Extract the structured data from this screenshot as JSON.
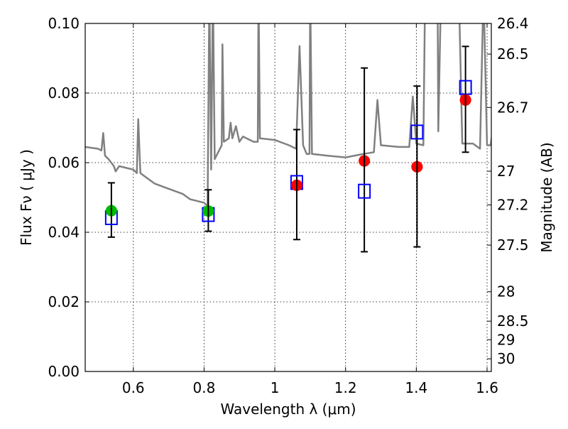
{
  "chart_data": {
    "type": "scatter",
    "title": "",
    "xlabel": "Wavelength  λ (μm)",
    "ylabel": "Flux  Fν  ( μJy )",
    "ylabel_right": "Magnitude (AB)",
    "xlim": [
      0.464,
      1.612
    ],
    "ylim": [
      0.0,
      0.1
    ],
    "grid": true,
    "x_ticks": [
      0.6,
      0.8,
      1.0,
      1.2,
      1.4,
      1.6
    ],
    "x_tick_labels": [
      "0.6",
      "0.8",
      "1",
      "1.2",
      "1.4",
      "1.6"
    ],
    "y_ticks": [
      0.0,
      0.02,
      0.04,
      0.06,
      0.08,
      0.1
    ],
    "y_tick_labels": [
      "0.00",
      "0.02",
      "0.04",
      "0.06",
      "0.08",
      "0.10"
    ],
    "right_ticks_mag": [
      26.4,
      26.5,
      26.7,
      27,
      27.2,
      27.5,
      28,
      28.5,
      29,
      30
    ],
    "right_tick_labels": [
      "26.4",
      "26.5",
      "26.7",
      "27",
      "27.2",
      "27.5",
      "28",
      "28.5",
      "29",
      "30"
    ],
    "mag_zeropoint": 23.9,
    "colors": {
      "spectrum": "#808080",
      "green": "#00bb00",
      "red": "#ff0000",
      "model": "#0000ff",
      "errorbar": "#000000"
    },
    "series": [
      {
        "name": "spectrum",
        "kind": "line",
        "x": [
          0.464,
          0.5,
          0.51,
          0.515,
          0.52,
          0.53,
          0.545,
          0.55,
          0.56,
          0.58,
          0.6,
          0.61,
          0.614,
          0.62,
          0.64,
          0.66,
          0.7,
          0.74,
          0.76,
          0.8,
          0.81,
          0.815,
          0.82,
          0.825,
          0.83,
          0.84,
          0.85,
          0.852,
          0.856,
          0.87,
          0.875,
          0.88,
          0.89,
          0.9,
          0.91,
          0.94,
          0.952,
          0.954,
          0.958,
          1.0,
          1.04,
          1.06,
          1.07,
          1.08,
          1.09,
          1.098,
          1.1,
          1.105,
          1.15,
          1.2,
          1.25,
          1.28,
          1.29,
          1.3,
          1.35,
          1.38,
          1.39,
          1.4,
          1.42,
          1.425,
          1.44,
          1.46,
          1.462,
          1.47,
          1.52,
          1.53,
          1.56,
          1.58,
          1.59,
          1.6,
          1.61,
          1.62
        ],
        "y": [
          0.0645,
          0.064,
          0.0635,
          0.0685,
          0.062,
          0.061,
          0.059,
          0.0575,
          0.059,
          0.0585,
          0.058,
          0.057,
          0.0725,
          0.057,
          0.0555,
          0.054,
          0.0525,
          0.051,
          0.0495,
          0.0485,
          0.0475,
          0.11,
          0.058,
          0.11,
          0.061,
          0.063,
          0.065,
          0.094,
          0.066,
          0.067,
          0.0715,
          0.067,
          0.0705,
          0.066,
          0.0675,
          0.066,
          0.066,
          0.11,
          0.067,
          0.0665,
          0.065,
          0.064,
          0.0935,
          0.065,
          0.0625,
          0.0625,
          0.11,
          0.0625,
          0.062,
          0.0615,
          0.0625,
          0.063,
          0.078,
          0.065,
          0.0645,
          0.0645,
          0.079,
          0.0655,
          0.065,
          0.11,
          0.11,
          0.11,
          0.069,
          0.11,
          0.11,
          0.0655,
          0.0655,
          0.064,
          0.11,
          0.065,
          0.065,
          0.072
        ]
      },
      {
        "name": "observed-green",
        "kind": "points",
        "color": "green",
        "x": [
          0.538,
          0.812
        ],
        "y": [
          0.0462,
          0.0461
        ],
        "err_low": [
          0.0386,
          0.0403
        ],
        "err_high": [
          0.0542,
          0.0522
        ]
      },
      {
        "name": "observed-red",
        "kind": "points",
        "color": "red",
        "x": [
          1.062,
          1.253,
          1.402,
          1.539
        ],
        "y": [
          0.0535,
          0.0605,
          0.0588,
          0.078
        ],
        "err_low": [
          0.0379,
          0.0344,
          0.0358,
          0.063
        ],
        "err_high": [
          0.0695,
          0.0872,
          0.082,
          0.0934
        ]
      },
      {
        "name": "model-squares",
        "kind": "open-squares",
        "color": "model",
        "x": [
          0.538,
          0.812,
          1.062,
          1.253,
          1.402,
          1.539
        ],
        "y": [
          0.0442,
          0.0451,
          0.0543,
          0.0518,
          0.0688,
          0.0816
        ]
      }
    ]
  }
}
